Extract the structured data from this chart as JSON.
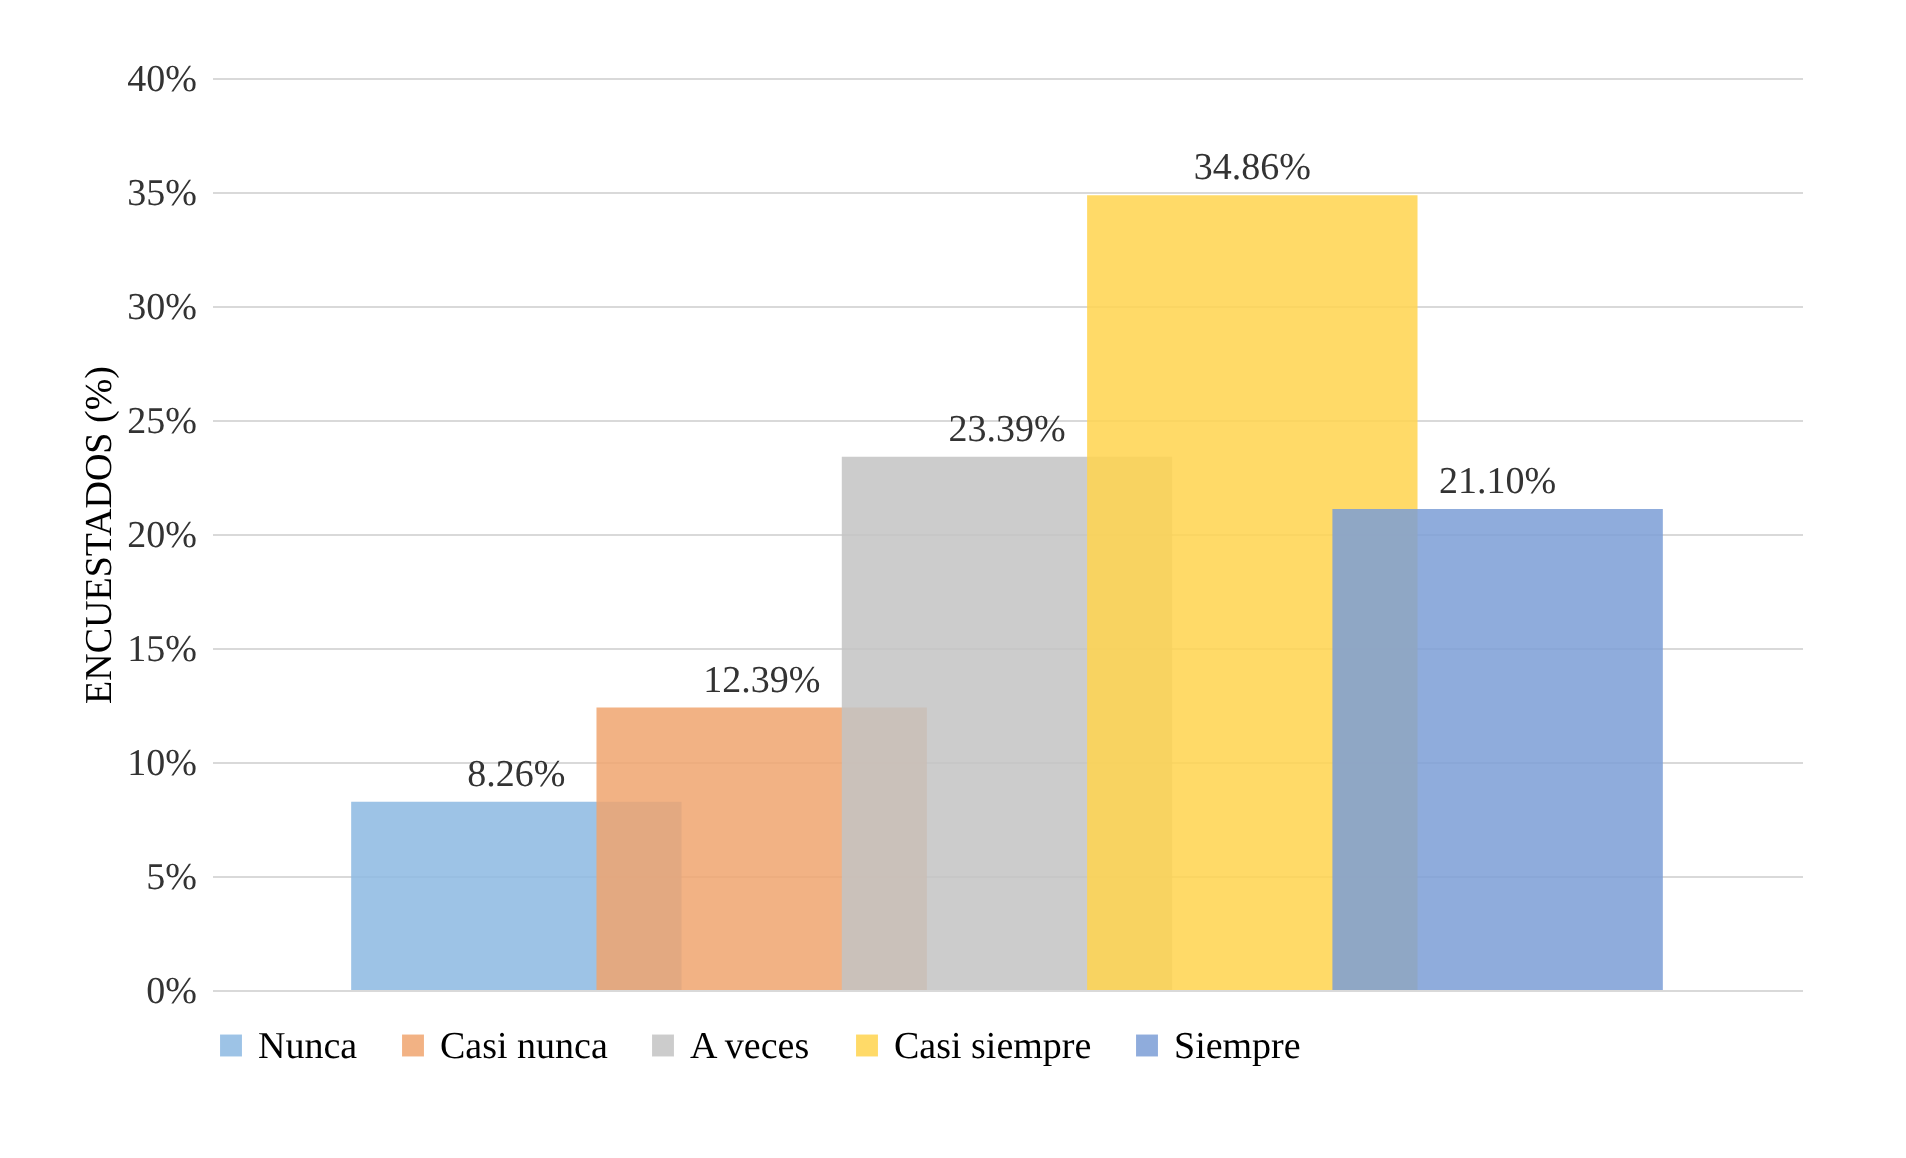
{
  "chart_data": {
    "type": "bar",
    "ylabel": "ENCUESTADOS (%)",
    "categories": [
      null,
      null,
      null,
      null,
      null
    ],
    "series": [
      {
        "name": "Nunca",
        "color": "#8cb8e2",
        "values": [
          8.26,
          null,
          null,
          null,
          null
        ],
        "value_labels": [
          "8.26%",
          null,
          null,
          null,
          null
        ]
      },
      {
        "name": "Casi nunca",
        "color": "#f0a46e",
        "values": [
          null,
          12.39,
          null,
          null,
          null
        ],
        "value_labels": [
          null,
          "12.39%",
          null,
          null,
          null
        ]
      },
      {
        "name": "A veces",
        "color": "#c3c3c3",
        "values": [
          null,
          null,
          23.39,
          null,
          null
        ],
        "value_labels": [
          null,
          null,
          "23.39%",
          null,
          null
        ]
      },
      {
        "name": "Casi siempre",
        "color": "#ffd34d",
        "values": [
          null,
          null,
          null,
          34.86,
          null
        ],
        "value_labels": [
          null,
          null,
          null,
          "34.86%",
          null
        ]
      },
      {
        "name": "Siempre",
        "color": "#7b9ed6",
        "values": [
          null,
          null,
          null,
          null,
          21.1
        ],
        "value_labels": [
          null,
          null,
          null,
          null,
          "21.10%"
        ]
      }
    ],
    "ylim": [
      0,
      40
    ],
    "yticks": [
      {
        "value": 0,
        "label": "0%"
      },
      {
        "value": 5,
        "label": "5%"
      },
      {
        "value": 10,
        "label": "10%"
      },
      {
        "value": 15,
        "label": "15%"
      },
      {
        "value": 20,
        "label": "20%"
      },
      {
        "value": 25,
        "label": "25%"
      },
      {
        "value": 30,
        "label": "30%"
      },
      {
        "value": 35,
        "label": "35%"
      },
      {
        "value": 40,
        "label": "40%"
      }
    ],
    "grid": "y",
    "legend": "bottom"
  }
}
